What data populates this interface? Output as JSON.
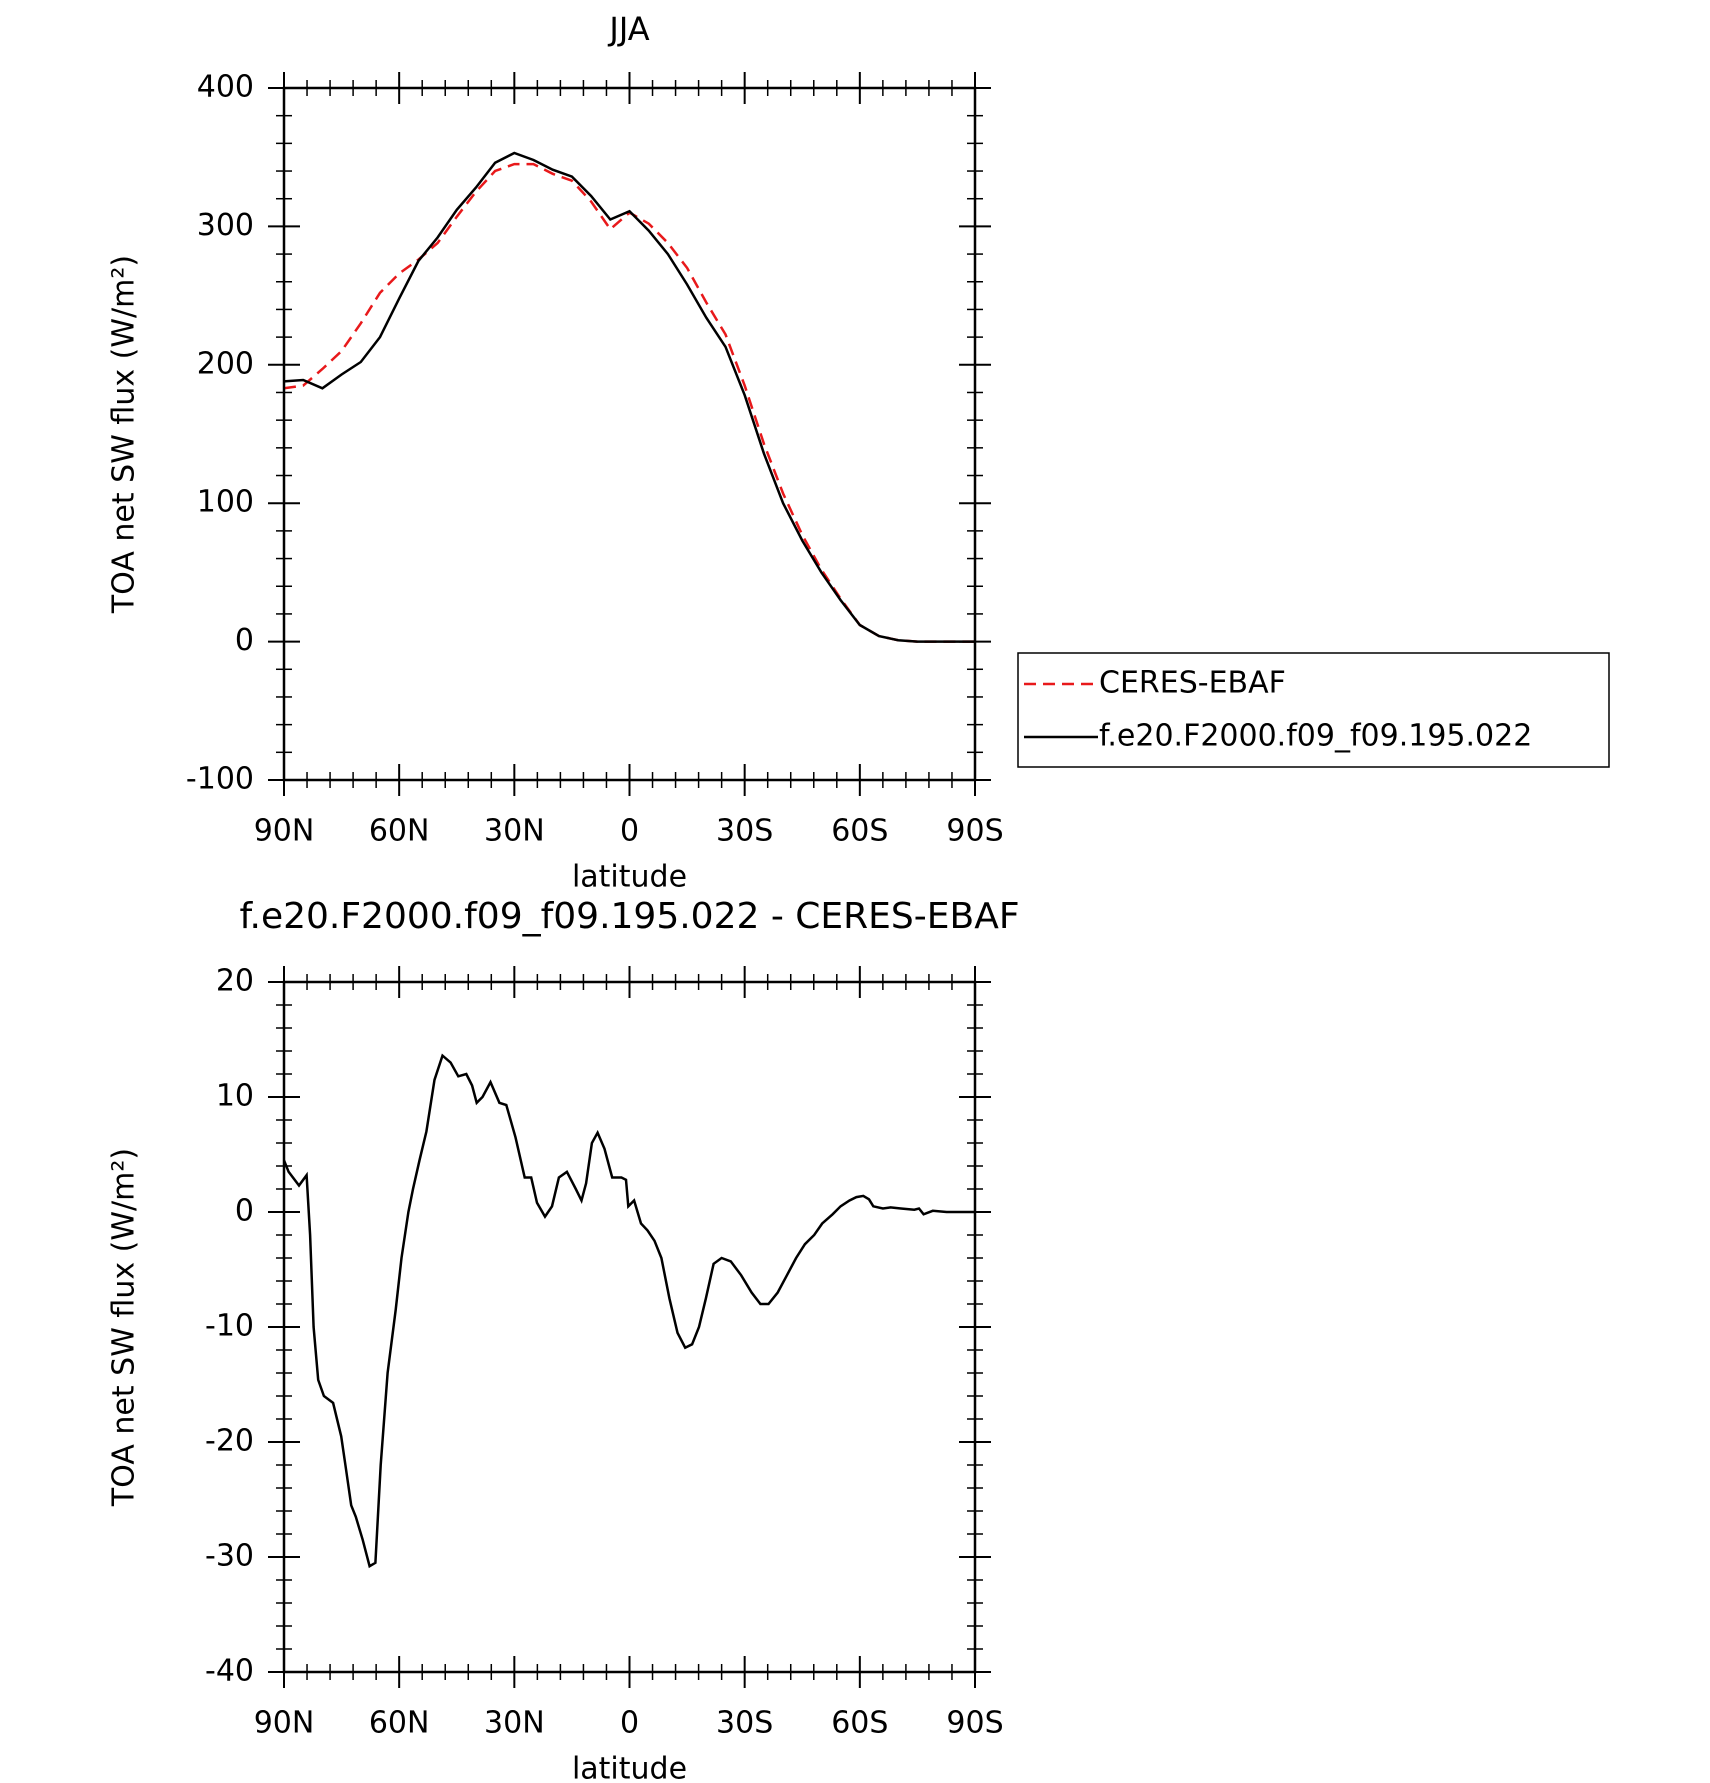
{
  "chart_data": [
    {
      "type": "line",
      "title": "JJA",
      "xlabel": "latitude",
      "ylabel": "TOA net SW flux (W/m²)",
      "xlim": [
        90,
        -90
      ],
      "xticks": [
        {
          "value": 90,
          "label": "90N"
        },
        {
          "value": 60,
          "label": "60N"
        },
        {
          "value": 30,
          "label": "30N"
        },
        0,
        {
          "value": -30,
          "label": "30S"
        },
        {
          "value": -60,
          "label": "60S"
        },
        {
          "value": -90,
          "label": "90S"
        }
      ],
      "ylim": [
        -100,
        400
      ],
      "yticks": [
        -100,
        0,
        100,
        200,
        300,
        400
      ],
      "legend": "outside-right",
      "x": [
        90,
        85,
        80,
        75,
        70,
        65,
        60,
        55,
        50,
        45,
        40,
        35,
        30,
        25,
        20,
        15,
        10,
        5,
        0,
        -5,
        -10,
        -15,
        -20,
        -25,
        -30,
        -35,
        -40,
        -45,
        -50,
        -55,
        -60,
        -65,
        -70,
        -75,
        -80,
        -85,
        -90
      ],
      "series": [
        {
          "name": "CERES-EBAF",
          "color": "#e8191b",
          "style": "dashed",
          "values": [
            183,
            185,
            197,
            210,
            230,
            252,
            266,
            276,
            288,
            307,
            325,
            340,
            345,
            345,
            338,
            333,
            318,
            298,
            310,
            302,
            288,
            270,
            245,
            222,
            185,
            143,
            107,
            77,
            52,
            31,
            12,
            4,
            1,
            0,
            0,
            0,
            0
          ]
        },
        {
          "name": "f.e20.F2000.f09_f09.195.022",
          "color": "#000000",
          "style": "solid",
          "values": [
            188,
            189,
            183,
            193,
            202,
            220,
            248,
            275,
            292,
            312,
            328,
            346,
            353,
            348,
            341,
            336,
            322,
            305,
            311,
            297,
            280,
            258,
            234,
            213,
            178,
            136,
            100,
            73,
            50,
            30,
            12,
            4,
            1,
            0,
            0,
            0,
            0
          ]
        }
      ]
    },
    {
      "type": "line",
      "title": "f.e20.F2000.f09_f09.195.022 - CERES-EBAF",
      "xlabel": "latitude",
      "ylabel": "TOA net SW flux (W/m²)",
      "xlim": [
        90,
        -90
      ],
      "xticks": [
        {
          "value": 90,
          "label": "90N"
        },
        {
          "value": 60,
          "label": "60N"
        },
        {
          "value": 30,
          "label": "30N"
        },
        0,
        {
          "value": -30,
          "label": "30S"
        },
        {
          "value": -60,
          "label": "60S"
        },
        {
          "value": -90,
          "label": "90S"
        }
      ],
      "ylim": [
        -40,
        20
      ],
      "yticks": [
        -40,
        -30,
        -20,
        -10,
        0,
        10,
        20
      ],
      "color": "#000000",
      "x": [
        90,
        88.8,
        86.1,
        84.1,
        83.2,
        82.3,
        81.1,
        79.6,
        77.2,
        75.1,
        74.0,
        72.5,
        71.3,
        69.5,
        67.7,
        66.2,
        64.8,
        63.0,
        60.9,
        59.4,
        57.6,
        56.4,
        54.7,
        52.9,
        50.8,
        48.7,
        46.6,
        44.6,
        42.5,
        41.0,
        39.8,
        38.3,
        36.2,
        33.9,
        32.1,
        29.7,
        27.3,
        25.6,
        24.1,
        22.0,
        20.2,
        18.4,
        16.3,
        14.0,
        12.5,
        11.3,
        9.8,
        8.3,
        6.5,
        4.5,
        2.1,
        0.9,
        0.3,
        -1.2,
        -3.0,
        -4.7,
        -6.5,
        -8.3,
        -10.4,
        -12.5,
        -14.5,
        -16.3,
        -18.1,
        -19.9,
        -21.9,
        -24.0,
        -26.4,
        -29.1,
        -31.8,
        -34.1,
        -36.2,
        -38.6,
        -41.0,
        -43.4,
        -45.7,
        -48.1,
        -50.2,
        -52.9,
        -55.0,
        -57.3,
        -59.1,
        -60.9,
        -62.4,
        -63.5,
        -66.0,
        -68.0,
        -70.7,
        -74.2,
        -75.4,
        -76.6,
        -79.0,
        -82.6,
        -90
      ],
      "values": [
        4.5,
        3.5,
        2.3,
        3.2,
        -2,
        -10,
        -14.6,
        -16,
        -16.6,
        -19.5,
        -22,
        -25.5,
        -26.5,
        -28.5,
        -30.8,
        -30.5,
        -22,
        -14,
        -8.5,
        -4,
        0,
        2,
        4.5,
        7,
        11.5,
        13.6,
        13,
        11.8,
        12,
        11,
        9.5,
        10,
        11.3,
        9.5,
        9.3,
        6.5,
        3,
        3,
        0.8,
        -0.4,
        0.5,
        3,
        3.5,
        2,
        1,
        2.5,
        6,
        6.9,
        5.5,
        3,
        3,
        2.8,
        0.5,
        1,
        -1,
        -1.6,
        -2.5,
        -4,
        -7.5,
        -10.5,
        -11.8,
        -11.5,
        -10,
        -7.5,
        -4.5,
        -4,
        -4.3,
        -5.5,
        -7,
        -8,
        -8,
        -7,
        -5.5,
        -4,
        -2.8,
        -2,
        -1,
        -0.2,
        0.5,
        1,
        1.3,
        1.4,
        1.1,
        0.5,
        0.3,
        0.4,
        0.3,
        0.2,
        0.3,
        -0.2,
        0.1,
        0,
        0
      ]
    }
  ]
}
